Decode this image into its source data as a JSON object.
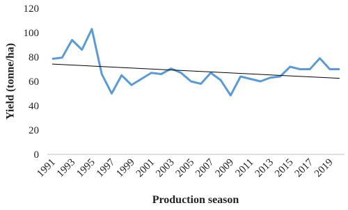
{
  "chart_data": {
    "type": "line",
    "y_label": "Yield (tonne/ha)",
    "x_label": "Production season",
    "categories": [
      "1991",
      null,
      "1993",
      null,
      "1995",
      null,
      "1997",
      null,
      "1999",
      null,
      "2001",
      null,
      "2003",
      null,
      "2005",
      null,
      "2007",
      null,
      "2009",
      null,
      "2011",
      null,
      "2013",
      null,
      "2015",
      null,
      "2017",
      null,
      "2019",
      null
    ],
    "series": [
      {
        "color": "#5b9bd5",
        "values": [
          78.5,
          79.5,
          94,
          86,
          103,
          66,
          50,
          65,
          57,
          62,
          67,
          66,
          70.5,
          67,
          60,
          58,
          67,
          61,
          48.5,
          64,
          62,
          60,
          63,
          64,
          72,
          70,
          70,
          79,
          70,
          70
        ]
      }
    ],
    "trendline": {
      "color": "#000000",
      "values": [
        74.2,
        62.5
      ]
    },
    "ylim": [
      0,
      120
    ],
    "yticks": [
      0,
      20,
      40,
      60,
      80,
      100,
      120
    ]
  }
}
